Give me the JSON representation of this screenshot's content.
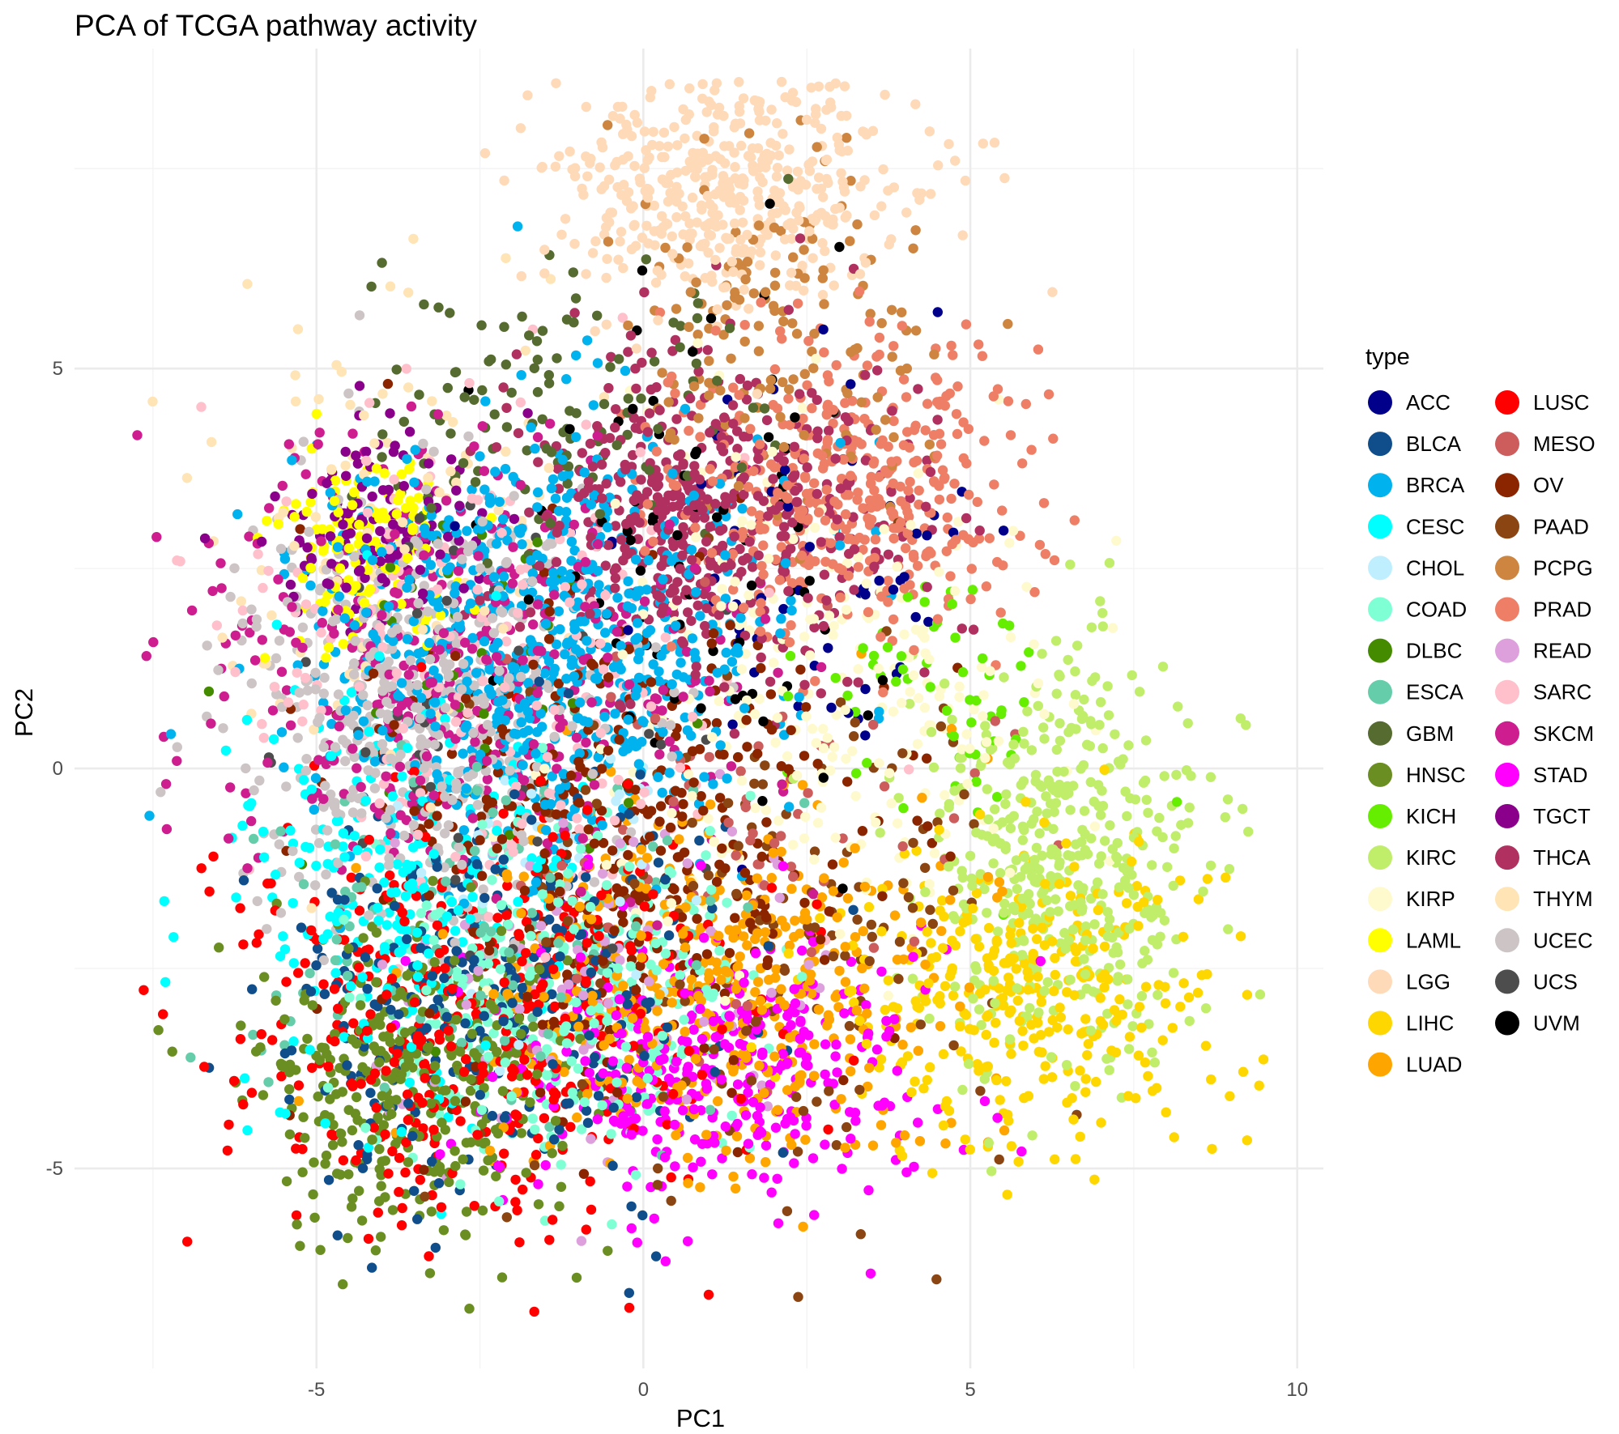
{
  "chart_data": {
    "type": "scatter",
    "title": "PCA of TCGA pathway activity",
    "xlabel": "PC1",
    "ylabel": "PC2",
    "xlim": [
      -8.7,
      10.4
    ],
    "ylim": [
      -7.5,
      9.0
    ],
    "x_ticks": [
      -5,
      0,
      5,
      10
    ],
    "y_ticks": [
      -5,
      0,
      5
    ],
    "x_tick_labels": [
      "-5",
      "0",
      "5",
      "10"
    ],
    "y_tick_labels": [
      "-5",
      "0",
      "5"
    ],
    "grid": true,
    "legend_title": "type",
    "legend_placement": "right",
    "point_count_note": "",
    "series": [
      {
        "name": "ACC",
        "color": "#00008B",
        "center": [
          2.5,
          2.5
        ],
        "spread": [
          2.2,
          1.8
        ],
        "n": 60
      },
      {
        "name": "BLCA",
        "color": "#104E8B",
        "center": [
          -2.2,
          -2.8
        ],
        "spread": [
          2.4,
          1.9
        ],
        "n": 300
      },
      {
        "name": "BRCA",
        "color": "#00B2EE",
        "center": [
          -1.5,
          1.6
        ],
        "spread": [
          2.5,
          1.9
        ],
        "n": 700
      },
      {
        "name": "CESC",
        "color": "#00FFFF",
        "center": [
          -3.8,
          -1.5
        ],
        "spread": [
          1.8,
          1.9
        ],
        "n": 230
      },
      {
        "name": "CHOL",
        "color": "#BFEFFF",
        "center": [
          -1.5,
          -1.0
        ],
        "spread": [
          2.0,
          1.8
        ],
        "n": 40
      },
      {
        "name": "COAD",
        "color": "#7FFFD4",
        "center": [
          -1.2,
          -2.8
        ],
        "spread": [
          2.2,
          1.5
        ],
        "n": 300
      },
      {
        "name": "DLBC",
        "color": "#458B00",
        "center": [
          -2.5,
          1.0
        ],
        "spread": [
          2.0,
          2.0
        ],
        "n": 40
      },
      {
        "name": "ESCA",
        "color": "#66CDAA",
        "center": [
          -2.5,
          -2.0
        ],
        "spread": [
          2.5,
          1.8
        ],
        "n": 130
      },
      {
        "name": "GBM",
        "color": "#556B2F",
        "center": [
          -1.5,
          4.5
        ],
        "spread": [
          2.2,
          1.3
        ],
        "n": 120
      },
      {
        "name": "HNSC",
        "color": "#6B8E23",
        "center": [
          -3.5,
          -3.8
        ],
        "spread": [
          1.8,
          1.4
        ],
        "n": 370
      },
      {
        "name": "KICH",
        "color": "#66EE00",
        "center": [
          4.5,
          0.9
        ],
        "spread": [
          1.4,
          1.4
        ],
        "n": 60
      },
      {
        "name": "KIRC",
        "color": "#C0EE6B",
        "center": [
          6.3,
          -1.1
        ],
        "spread": [
          1.6,
          1.8
        ],
        "n": 450
      },
      {
        "name": "KIRP",
        "color": "#FFFACD",
        "center": [
          3.0,
          1.0
        ],
        "spread": [
          2.8,
          2.2
        ],
        "n": 250
      },
      {
        "name": "LAML",
        "color": "#FFFF00",
        "center": [
          -4.2,
          2.7
        ],
        "spread": [
          0.9,
          0.9
        ],
        "n": 140
      },
      {
        "name": "LGG",
        "color": "#FFDAB9",
        "center": [
          1.2,
          7.3
        ],
        "spread": [
          2.0,
          1.1
        ],
        "n": 460
      },
      {
        "name": "LIHC",
        "color": "#FFD700",
        "center": [
          5.8,
          -2.8
        ],
        "spread": [
          2.2,
          1.4
        ],
        "n": 340
      },
      {
        "name": "LUAD",
        "color": "#FFA500",
        "center": [
          1.0,
          -2.8
        ],
        "spread": [
          2.6,
          1.6
        ],
        "n": 450
      },
      {
        "name": "LUSC",
        "color": "#FF0000",
        "center": [
          -2.5,
          -3.2
        ],
        "spread": [
          2.8,
          2.0
        ],
        "n": 430
      },
      {
        "name": "MESO",
        "color": "#CD5C5C",
        "center": [
          1.5,
          -0.5
        ],
        "spread": [
          2.5,
          2.0
        ],
        "n": 70
      },
      {
        "name": "OV",
        "color": "#8B2500",
        "center": [
          -0.5,
          -0.8
        ],
        "spread": [
          2.8,
          2.2
        ],
        "n": 380
      },
      {
        "name": "PAAD",
        "color": "#8B4513",
        "center": [
          2.0,
          -2.0
        ],
        "spread": [
          3.0,
          2.5
        ],
        "n": 160
      },
      {
        "name": "PCPG",
        "color": "#CD853F",
        "center": [
          2.0,
          5.5
        ],
        "spread": [
          1.7,
          1.5
        ],
        "n": 150
      },
      {
        "name": "PRAD",
        "color": "#EE7F66",
        "center": [
          3.0,
          3.5
        ],
        "spread": [
          1.9,
          1.4
        ],
        "n": 430
      },
      {
        "name": "READ",
        "color": "#DDA0DD",
        "center": [
          -0.8,
          -2.6
        ],
        "spread": [
          2.3,
          1.6
        ],
        "n": 100
      },
      {
        "name": "SARC",
        "color": "#FFC0CB",
        "center": [
          -2.5,
          1.2
        ],
        "spread": [
          2.6,
          2.2
        ],
        "n": 230
      },
      {
        "name": "SKCM",
        "color": "#CD1D8F",
        "center": [
          -2.8,
          1.2
        ],
        "spread": [
          2.8,
          1.9
        ],
        "n": 430
      },
      {
        "name": "STAD",
        "color": "#FF00FF",
        "center": [
          1.0,
          -3.8
        ],
        "spread": [
          2.4,
          1.3
        ],
        "n": 380
      },
      {
        "name": "TGCT",
        "color": "#8B008B",
        "center": [
          -4.0,
          3.0
        ],
        "spread": [
          1.2,
          0.9
        ],
        "n": 130
      },
      {
        "name": "THCA",
        "color": "#B03060",
        "center": [
          1.0,
          3.2
        ],
        "spread": [
          2.0,
          1.4
        ],
        "n": 480
      },
      {
        "name": "THYM",
        "color": "#FFE4B5",
        "center": [
          -4.0,
          3.0
        ],
        "spread": [
          2.0,
          2.2
        ],
        "n": 110
      },
      {
        "name": "UCEC",
        "color": "#CDC5C5",
        "center": [
          -3.5,
          0.8
        ],
        "spread": [
          2.0,
          2.0
        ],
        "n": 500
      },
      {
        "name": "UCS",
        "color": "#4D4D4D",
        "center": [
          -3.0,
          0.5
        ],
        "spread": [
          2.2,
          2.2
        ],
        "n": 50
      },
      {
        "name": "UVM",
        "color": "#000000",
        "center": [
          0.8,
          3.0
        ],
        "spread": [
          1.8,
          2.0
        ],
        "n": 75
      }
    ]
  }
}
